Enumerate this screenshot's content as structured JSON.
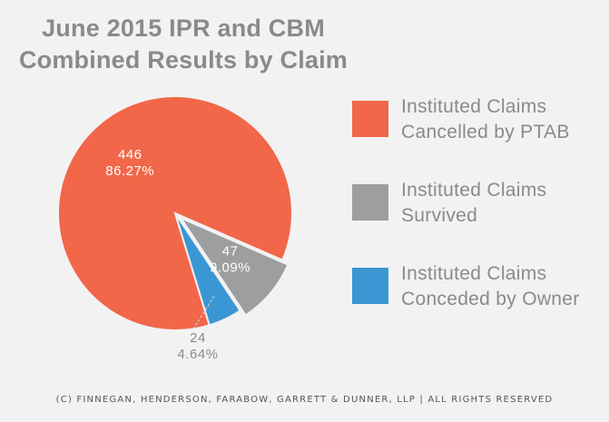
{
  "title": [
    "June 2015 IPR and CBM",
    "Combined Results by Claim"
  ],
  "chart_data": {
    "type": "pie",
    "title": "June 2015 IPR and CBM Combined Results by Claim",
    "slices": [
      {
        "name": "Instituted Claims Cancelled by PTAB",
        "legend_lines": [
          "Instituted Claims",
          "Cancelled by PTAB"
        ],
        "value": 446,
        "percent_label": "86.27%",
        "color": "#f26649"
      },
      {
        "name": "Instituted Claims Survived",
        "legend_lines": [
          "Instituted Claims",
          "Survived"
        ],
        "value": 47,
        "percent_label": "9.09%",
        "color": "#9d9e9f"
      },
      {
        "name": "Instituted Claims Conceded by Owner",
        "legend_lines": [
          "Instituted Claims",
          "Conceded by Owner"
        ],
        "value": 24,
        "percent_label": "4.64%",
        "color": "#3a97d3"
      }
    ],
    "legend_position": "right"
  },
  "footer": "(C) FINNEGAN, HENDERSON, FARABOW, GARRETT & DUNNER, LLP | ALL RIGHTS RESERVED"
}
